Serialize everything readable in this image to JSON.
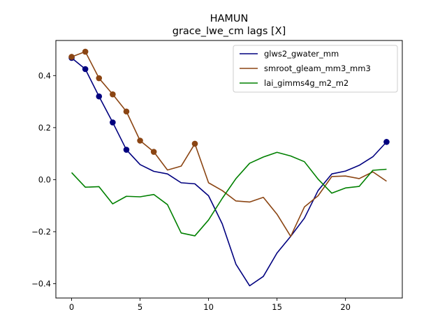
{
  "chart_data": {
    "type": "line",
    "title": "HAMUN",
    "subtitle": "grace_lwe_cm lags [X]",
    "xlabel": "",
    "ylabel": "",
    "xlim": [
      -1.15,
      24.15
    ],
    "ylim": [
      -0.455,
      0.535
    ],
    "xticks": [
      0,
      5,
      10,
      15,
      20
    ],
    "yticks": [
      -0.4,
      -0.2,
      0.0,
      0.2,
      0.4
    ],
    "xtick_labels": [
      "0",
      "5",
      "10",
      "15",
      "20"
    ],
    "ytick_labels": [
      "−0.4",
      "−0.2",
      "0.0",
      "0.2",
      "0.4"
    ],
    "grid": false,
    "legend_position": "upper right",
    "x": [
      0,
      1,
      2,
      3,
      4,
      5,
      6,
      7,
      8,
      9,
      10,
      11,
      12,
      13,
      14,
      15,
      16,
      17,
      18,
      19,
      20,
      21,
      22,
      23
    ],
    "series": [
      {
        "name": "glws2_gwater_mm",
        "color": "#00007f",
        "values": [
          0.468,
          0.425,
          0.32,
          0.22,
          0.115,
          0.058,
          0.032,
          0.022,
          -0.012,
          -0.016,
          -0.062,
          -0.17,
          -0.325,
          -0.408,
          -0.372,
          -0.282,
          -0.218,
          -0.148,
          -0.042,
          0.022,
          0.033,
          0.055,
          0.088,
          0.145
        ],
        "markers_at": [
          0,
          1,
          2,
          3,
          4,
          23
        ]
      },
      {
        "name": "smroot_gleam_mm3_mm3",
        "color": "#8b4513",
        "values": [
          0.472,
          0.492,
          0.39,
          0.328,
          0.262,
          0.15,
          0.107,
          0.037,
          0.052,
          0.138,
          -0.012,
          -0.042,
          -0.082,
          -0.086,
          -0.068,
          -0.133,
          -0.218,
          -0.105,
          -0.062,
          0.012,
          0.014,
          0.004,
          0.03,
          -0.006
        ],
        "markers_at": [
          0,
          1,
          2,
          3,
          4,
          5,
          6,
          9
        ]
      },
      {
        "name": "lai_gimms4g_m2_m2",
        "color": "#008000",
        "values": [
          0.027,
          -0.029,
          -0.027,
          -0.093,
          -0.064,
          -0.066,
          -0.057,
          -0.096,
          -0.205,
          -0.216,
          -0.155,
          -0.072,
          0.004,
          0.063,
          0.087,
          0.105,
          0.091,
          0.069,
          0.002,
          -0.052,
          -0.032,
          -0.026,
          0.036,
          0.04
        ],
        "markers_at": []
      }
    ]
  }
}
